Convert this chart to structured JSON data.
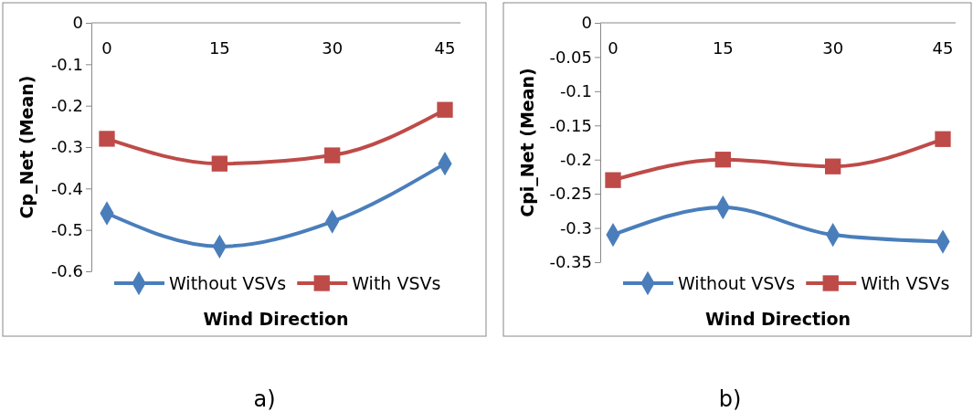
{
  "chart_data": [
    {
      "type": "line",
      "xlabel": "Wind Direction",
      "ylabel": "Cp_Net (Mean)",
      "categories": [
        "0",
        "15",
        "30",
        "45"
      ],
      "ylim": [
        -0.6,
        0
      ],
      "yticks": [
        0,
        -0.1,
        -0.2,
        -0.3,
        -0.4,
        -0.5,
        -0.6
      ],
      "legend": "bottom",
      "annotations": [
        "a)"
      ],
      "series": [
        {
          "name": "Without VSVs",
          "color": "#4a7ebb",
          "marker": "diamond",
          "values": [
            -0.46,
            -0.54,
            -0.48,
            -0.34
          ]
        },
        {
          "name": "With VSVs",
          "color": "#be4b48",
          "marker": "square",
          "values": [
            -0.28,
            -0.34,
            -0.32,
            -0.21
          ]
        }
      ]
    },
    {
      "type": "line",
      "xlabel": "Wind Direction",
      "ylabel": "Cpi_Net (Mean)",
      "categories": [
        "0",
        "15",
        "30",
        "45"
      ],
      "ylim": [
        -0.35,
        0
      ],
      "yticks": [
        0,
        -0.05,
        -0.1,
        -0.15,
        -0.2,
        -0.25,
        -0.3,
        -0.35
      ],
      "legend": "bottom",
      "annotations": [
        "b)"
      ],
      "series": [
        {
          "name": "Without VSVs",
          "color": "#4a7ebb",
          "marker": "diamond",
          "values": [
            -0.31,
            -0.27,
            -0.31,
            -0.32
          ]
        },
        {
          "name": "With VSVs",
          "color": "#be4b48",
          "marker": "square",
          "values": [
            -0.23,
            -0.2,
            -0.21,
            -0.17
          ]
        }
      ]
    }
  ]
}
